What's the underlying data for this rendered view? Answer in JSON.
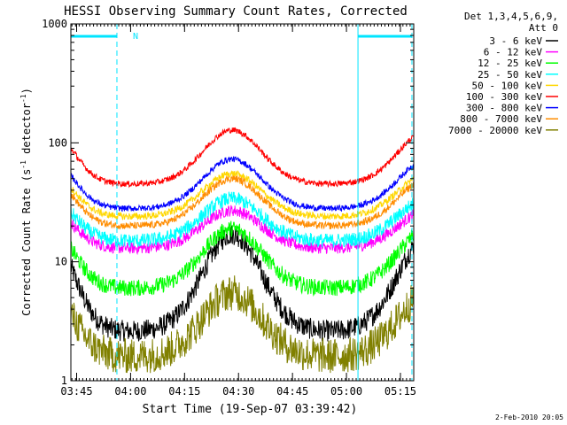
{
  "chart_data": {
    "type": "line",
    "title": "HESSI Observing Summary Count Rates, Corrected",
    "xlabel": "Start Time (19-Sep-07 03:39:42)",
    "ylabel_main": "Corrected Count Rate (s",
    "ylabel_sup1": "-1",
    "ylabel_mid": " detector",
    "ylabel_sup2": "-1",
    "ylabel_end": ")",
    "y_scale": "log",
    "ylim": [
      1,
      1000
    ],
    "xlim_minutes": [
      3.7,
      99.0
    ],
    "y_ticks": [
      {
        "value": 1,
        "label": "1"
      },
      {
        "value": 10,
        "label": "10"
      },
      {
        "value": 100,
        "label": "100"
      },
      {
        "value": 1000,
        "label": "1000"
      }
    ],
    "x_ticks": [
      {
        "minute": 5.3,
        "label": "03:45"
      },
      {
        "minute": 20.3,
        "label": "04:00"
      },
      {
        "minute": 35.3,
        "label": "04:15"
      },
      {
        "minute": 50.3,
        "label": "04:30"
      },
      {
        "minute": 65.3,
        "label": "04:45"
      },
      {
        "minute": 80.3,
        "label": "05:00"
      },
      {
        "minute": 95.3,
        "label": "05:15"
      }
    ],
    "legend_header": [
      "Det 1,3,4,5,6,9,",
      "Att 0"
    ],
    "legend_position": "right",
    "series": [
      {
        "name": "3 - 6 keV",
        "color": "#000000",
        "base": 2.6,
        "peak": 17,
        "noise": 0.09
      },
      {
        "name": "6 - 12 keV",
        "color": "#ff00ff",
        "base": 13,
        "peak": 27,
        "noise": 0.05
      },
      {
        "name": "12 - 25 keV",
        "color": "#00ff00",
        "base": 6,
        "peak": 19,
        "noise": 0.07
      },
      {
        "name": "25 - 50 keV",
        "color": "#00ffff",
        "base": 15,
        "peak": 34,
        "noise": 0.06
      },
      {
        "name": "50 - 100 keV",
        "color": "#ffd700",
        "base": 24,
        "peak": 55,
        "noise": 0.03
      },
      {
        "name": "100 - 300 keV",
        "color": "#ff0000",
        "base": 45,
        "peak": 128,
        "noise": 0.025
      },
      {
        "name": "300 - 800 keV",
        "color": "#0000ff",
        "base": 28,
        "peak": 73,
        "noise": 0.025
      },
      {
        "name": "800 - 7000 keV",
        "color": "#ff8c00",
        "base": 20,
        "peak": 50,
        "noise": 0.03
      },
      {
        "name": "7000 - 20000 keV",
        "color": "#808000",
        "base": 1.6,
        "peak": 5.5,
        "noise": 0.15
      }
    ],
    "annotations": {
      "night_label": "N",
      "night_bars": [
        {
          "start_minute": 3.7,
          "end_minute": 16.5
        },
        {
          "start_minute": 83.5,
          "end_minute": 98.5
        }
      ],
      "vlines_dashed_minutes": [
        16.5,
        98.5
      ],
      "vlines_solid_minutes": [
        83.5
      ]
    },
    "grid": false
  },
  "footer": {
    "date_stamp": "2-Feb-2010 20:05"
  },
  "colors": {
    "axis": "#000000",
    "annotation": "#00e5ff",
    "background": "#ffffff"
  }
}
